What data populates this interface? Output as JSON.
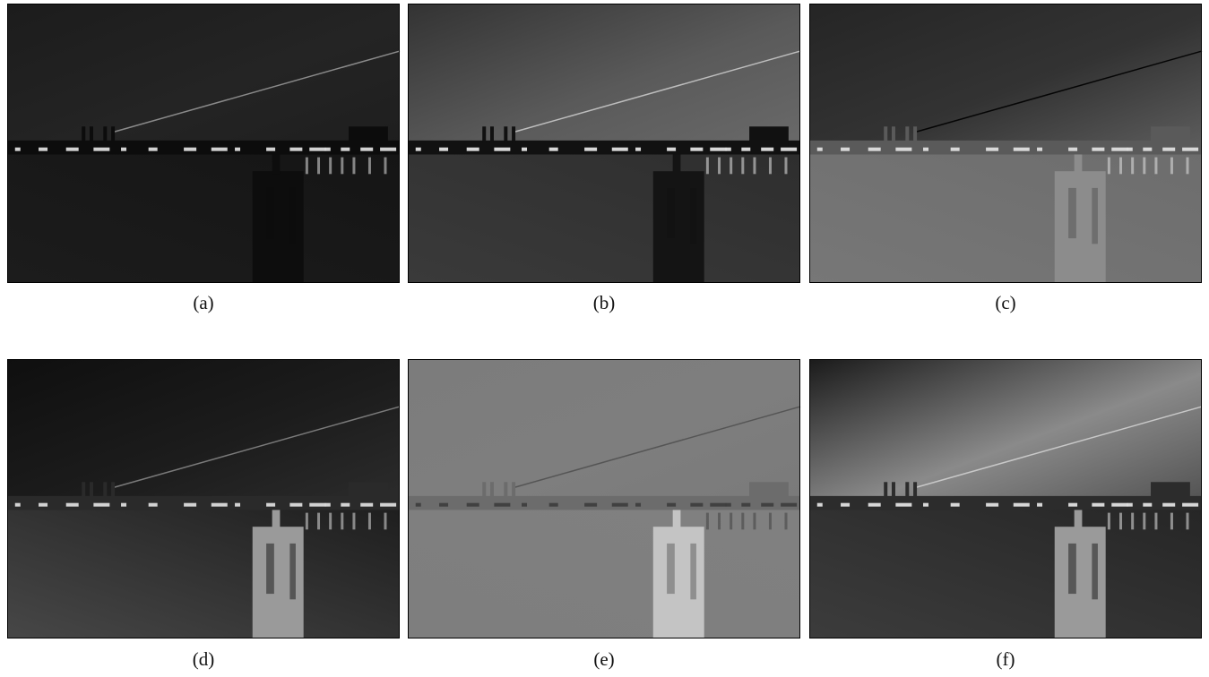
{
  "figure": {
    "panels": [
      {
        "label": "(a)"
      },
      {
        "label": "(b)"
      },
      {
        "label": "(c)"
      },
      {
        "label": "(d)"
      },
      {
        "label": "(e)"
      },
      {
        "label": "(f)"
      }
    ]
  }
}
